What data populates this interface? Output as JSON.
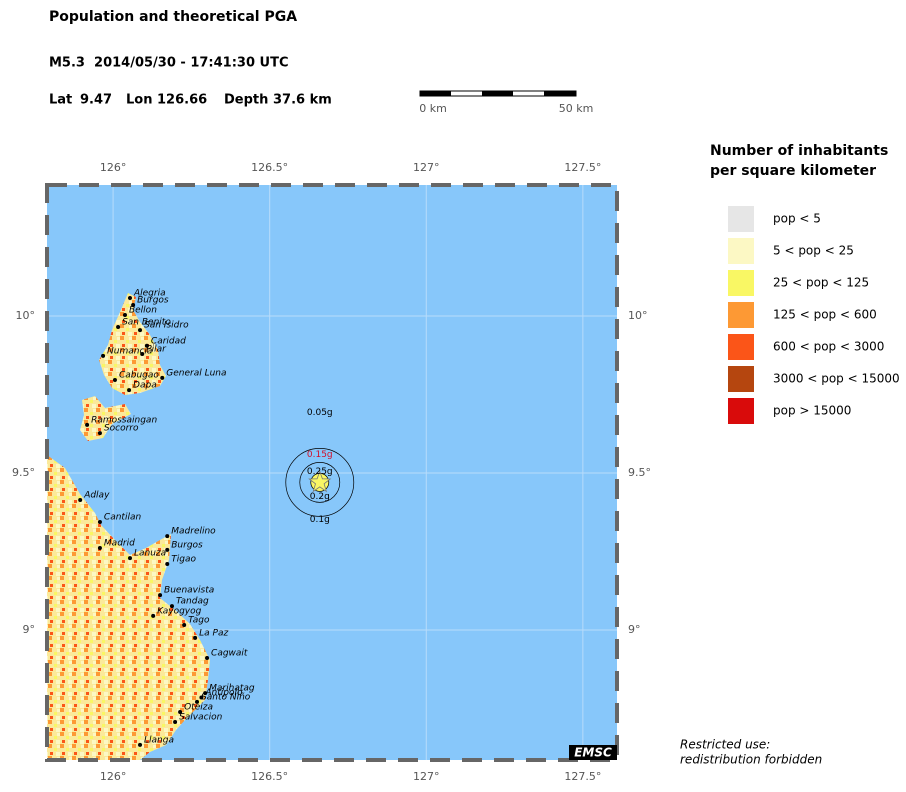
{
  "header": {
    "title": "Population and theoretical PGA",
    "event": "M5.3  2014/05/30 - 17:41:30 UTC",
    "lat_label": "Lat",
    "lat": 9.47,
    "lon_label": "Lon",
    "lon": 126.66,
    "depth_label": "Depth",
    "depth": "37.6 km"
  },
  "scale_bar": {
    "start": "0 km",
    "end": "50 km"
  },
  "map": {
    "lon_range": [
      125.789,
      127.609
    ],
    "lat_range": [
      8.586,
      10.417
    ],
    "lon_ticks": [
      {
        "value": 126,
        "label": "126°"
      },
      {
        "value": 126.5,
        "label": "126.5°"
      },
      {
        "value": 127,
        "label": "127°"
      },
      {
        "value": 127.5,
        "label": "127.5°"
      }
    ],
    "lat_ticks": [
      {
        "value": 10,
        "label": "10°"
      },
      {
        "value": 9.5,
        "label": "9.5°"
      },
      {
        "value": 9,
        "label": "9°"
      }
    ],
    "cities": [
      {
        "name": "Alegria",
        "lat": 10.057,
        "lon": 126.054
      },
      {
        "name": "Burgos",
        "lat": 10.035,
        "lon": 126.064
      },
      {
        "name": "Bellon",
        "lat": 10.003,
        "lon": 126.038
      },
      {
        "name": "San Benito",
        "lat": 9.965,
        "lon": 126.016
      },
      {
        "name": "San Isidro",
        "lat": 9.955,
        "lon": 126.086
      },
      {
        "name": "Caridad",
        "lat": 9.905,
        "lon": 126.108
      },
      {
        "name": "Numancia",
        "lat": 9.873,
        "lon": 125.968
      },
      {
        "name": "Pilar",
        "lat": 9.879,
        "lon": 126.093
      },
      {
        "name": "Cabugao",
        "lat": 9.796,
        "lon": 126.006
      },
      {
        "name": "General Luna",
        "lat": 9.803,
        "lon": 126.157
      },
      {
        "name": "Dapa",
        "lat": 9.764,
        "lon": 126.051
      },
      {
        "name": "Ramossaingan",
        "lat": 9.653,
        "lon": 125.917
      },
      {
        "name": "Socorro",
        "lat": 9.627,
        "lon": 125.958
      },
      {
        "name": "Adlay",
        "lat": 9.414,
        "lon": 125.895
      },
      {
        "name": "Cantilan",
        "lat": 9.344,
        "lon": 125.958
      },
      {
        "name": "Madrid",
        "lat": 9.261,
        "lon": 125.958
      },
      {
        "name": "Lanuza",
        "lat": 9.229,
        "lon": 126.054
      },
      {
        "name": "Madrelino",
        "lat": 9.299,
        "lon": 126.173
      },
      {
        "name": "Burgos",
        "lat": 9.255,
        "lon": 126.173
      },
      {
        "name": "Tigao",
        "lat": 9.21,
        "lon": 126.173
      },
      {
        "name": "Buenavista",
        "lat": 9.111,
        "lon": 126.15
      },
      {
        "name": "Tandag",
        "lat": 9.076,
        "lon": 126.188
      },
      {
        "name": "Kayogyog",
        "lat": 9.045,
        "lon": 126.128
      },
      {
        "name": "Tago",
        "lat": 9.016,
        "lon": 126.227
      },
      {
        "name": "La Paz",
        "lat": 8.975,
        "lon": 126.262
      },
      {
        "name": "Cagwait",
        "lat": 8.911,
        "lon": 126.3
      },
      {
        "name": "Marihatag",
        "lat": 8.799,
        "lon": 126.294
      },
      {
        "name": "Antipolo",
        "lat": 8.785,
        "lon": 126.282
      },
      {
        "name": "Santo Niño",
        "lat": 8.771,
        "lon": 126.268
      },
      {
        "name": "Oteiza",
        "lat": 8.739,
        "lon": 126.214
      },
      {
        "name": "Salvacion",
        "lat": 8.707,
        "lon": 126.198
      },
      {
        "name": "Llanga",
        "lat": 8.634,
        "lon": 126.086
      }
    ],
    "pga_labels": [
      {
        "text": "0.05g",
        "color": "#000000"
      },
      {
        "text": "0.15g",
        "color": "#d0102a"
      },
      {
        "text": "0.25g",
        "color": "#000000"
      },
      {
        "text": "0.2g",
        "color": "#000000"
      },
      {
        "text": "0.1g",
        "color": "#000000"
      }
    ],
    "logo": "EMSC"
  },
  "legend": {
    "title_lines": [
      "Number of inhabitants",
      "per square kilometer"
    ],
    "items": [
      {
        "label": "pop < 5",
        "color": "#e6e6e6"
      },
      {
        "label": "5 < pop < 25",
        "color": "#fcf8c4"
      },
      {
        "label": "25 < pop < 125",
        "color": "#f9f764"
      },
      {
        "label": "125 < pop < 600",
        "color": "#fd9934"
      },
      {
        "label": "600 < pop < 3000",
        "color": "#fb5518"
      },
      {
        "label": "3000 < pop < 15000",
        "color": "#b5460f"
      },
      {
        "label": "pop > 15000",
        "color": "#d90b0b"
      }
    ]
  },
  "notice": [
    "Restricted use:",
    "redistribution forbidden"
  ]
}
